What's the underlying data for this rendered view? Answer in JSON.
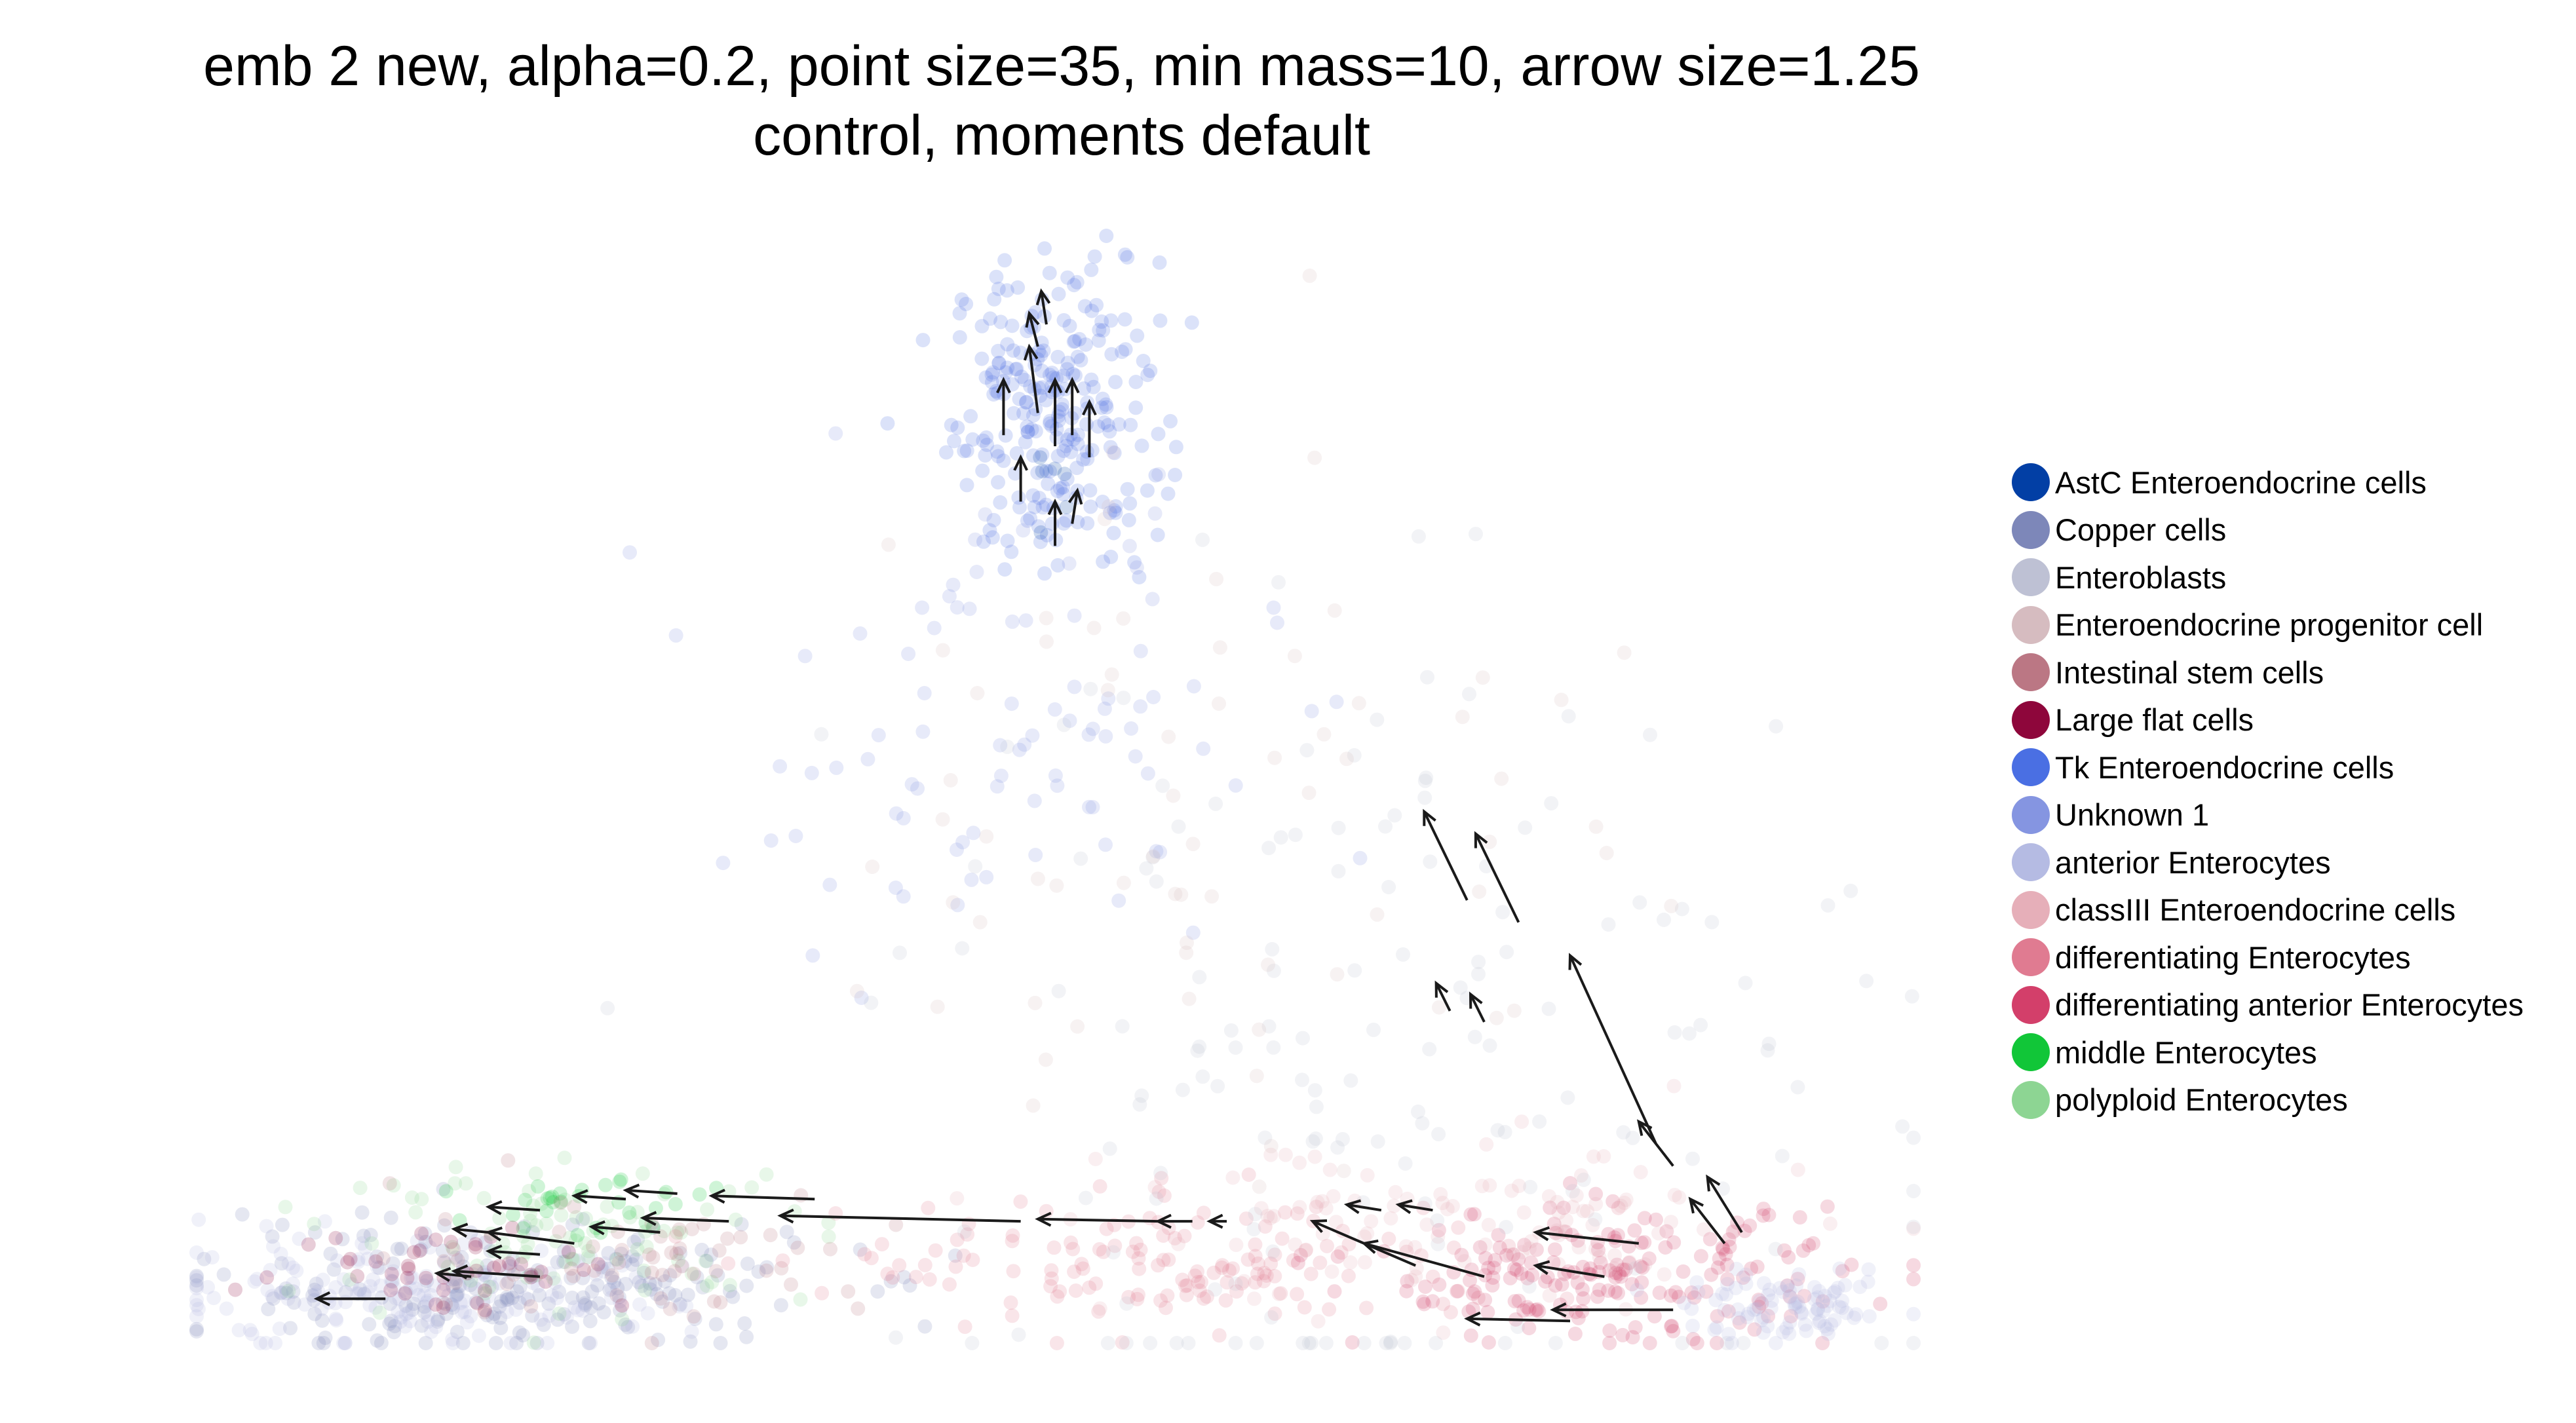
{
  "chart_data": {
    "type": "scatter",
    "title": "emb 2 new, alpha=0.2, point size=35, min mass=10, arrow size=1.25",
    "subtitle": "control, moments default",
    "xlabel": "",
    "ylabel": "",
    "axes_visible": false,
    "grid": false,
    "legend_placement": "right",
    "point_alpha": 0.2,
    "point_size": 35,
    "min_mass": 10,
    "arrow_size": 1.25,
    "categories": [
      {
        "name": "AstC Enteroendocrine cells",
        "color": "#023fa5"
      },
      {
        "name": "Copper cells",
        "color": "#7d87b9"
      },
      {
        "name": "Enteroblasts",
        "color": "#bec1d4"
      },
      {
        "name": "Enteroendocrine progenitor cell",
        "color": "#d6bcc0"
      },
      {
        "name": "Intestinal stem cells",
        "color": "#bb7784"
      },
      {
        "name": "Large flat cells",
        "color": "#8e063b"
      },
      {
        "name": "Tk Enteroendocrine cells",
        "color": "#4a6fe3"
      },
      {
        "name": "Unknown 1",
        "color": "#8595e1"
      },
      {
        "name": "anterior Enterocytes",
        "color": "#b5bbe3"
      },
      {
        "name": "classIII Enteroendocrine cells",
        "color": "#e6afb9"
      },
      {
        "name": "differentiating Enterocytes",
        "color": "#e07b91"
      },
      {
        "name": "differentiating anterior Enterocytes",
        "color": "#d33f6a"
      },
      {
        "name": "middle Enterocytes",
        "color": "#11c638"
      },
      {
        "name": "polyploid Enterocytes",
        "color": "#8dd593"
      }
    ],
    "clusters": [
      {
        "category": "Tk Enteroendocrine cells",
        "cx": 0.5,
        "cy": 0.84,
        "sx": 0.03,
        "sy": 0.07,
        "n": 260
      },
      {
        "category": "Unknown 1",
        "cx": 0.47,
        "cy": 0.55,
        "sx": 0.08,
        "sy": 0.1,
        "n": 90
      },
      {
        "category": "Copper cells",
        "cx": 0.18,
        "cy": 0.05,
        "sx": 0.09,
        "sy": 0.03,
        "n": 220
      },
      {
        "category": "anterior Enterocytes",
        "cx": 0.12,
        "cy": 0.04,
        "sx": 0.08,
        "sy": 0.025,
        "n": 160
      },
      {
        "category": "polyploid Enterocytes",
        "cx": 0.22,
        "cy": 0.1,
        "sx": 0.07,
        "sy": 0.03,
        "n": 90
      },
      {
        "category": "middle Enterocytes",
        "cx": 0.24,
        "cy": 0.12,
        "sx": 0.05,
        "sy": 0.02,
        "n": 30
      },
      {
        "category": "Large flat cells",
        "cx": 0.15,
        "cy": 0.07,
        "sx": 0.05,
        "sy": 0.02,
        "n": 45
      },
      {
        "category": "Intestinal stem cells",
        "cx": 0.26,
        "cy": 0.08,
        "sx": 0.07,
        "sy": 0.03,
        "n": 60
      },
      {
        "category": "differentiating Enterocytes",
        "cx": 0.58,
        "cy": 0.07,
        "sx": 0.1,
        "sy": 0.03,
        "n": 150
      },
      {
        "category": "differentiating anterior Enterocytes",
        "cx": 0.82,
        "cy": 0.06,
        "sx": 0.07,
        "sy": 0.03,
        "n": 200
      },
      {
        "category": "classIII Enteroendocrine cells",
        "cx": 0.74,
        "cy": 0.1,
        "sx": 0.1,
        "sy": 0.04,
        "n": 110
      },
      {
        "category": "Enteroblasts",
        "cx": 0.7,
        "cy": 0.25,
        "sx": 0.15,
        "sy": 0.2,
        "n": 170
      },
      {
        "category": "Enteroendocrine progenitor cell",
        "cx": 0.6,
        "cy": 0.5,
        "sx": 0.12,
        "sy": 0.18,
        "n": 70
      },
      {
        "category": "anterior Enterocytes",
        "cx": 0.93,
        "cy": 0.03,
        "sx": 0.03,
        "sy": 0.015,
        "n": 90
      },
      {
        "category": "AstC Enteroendocrine cells",
        "cx": 0.5,
        "cy": 0.78,
        "sx": 0.01,
        "sy": 0.02,
        "n": 6
      }
    ],
    "arrows": [
      {
        "x": 0.11,
        "y": 0.04,
        "dx": -0.04,
        "dy": 0
      },
      {
        "x": 0.2,
        "y": 0.06,
        "dx": -0.05,
        "dy": 0.005
      },
      {
        "x": 0.22,
        "y": 0.09,
        "dx": -0.05,
        "dy": 0.01
      },
      {
        "x": 0.27,
        "y": 0.1,
        "dx": -0.04,
        "dy": 0.005
      },
      {
        "x": 0.31,
        "y": 0.11,
        "dx": -0.05,
        "dy": 0.003
      },
      {
        "x": 0.36,
        "y": 0.13,
        "dx": -0.06,
        "dy": 0.003
      },
      {
        "x": 0.17,
        "y": 0.1,
        "dx": -0.02,
        "dy": 0.003
      },
      {
        "x": 0.2,
        "y": 0.12,
        "dx": -0.03,
        "dy": 0.003
      },
      {
        "x": 0.25,
        "y": 0.13,
        "dx": -0.03,
        "dy": 0.003
      },
      {
        "x": 0.28,
        "y": 0.135,
        "dx": -0.03,
        "dy": 0.003
      },
      {
        "x": 0.2,
        "y": 0.08,
        "dx": -0.03,
        "dy": 0.003
      },
      {
        "x": 0.16,
        "y": 0.06,
        "dx": -0.02,
        "dy": 0.003
      },
      {
        "x": 0.48,
        "y": 0.11,
        "dx": -0.14,
        "dy": 0.005
      },
      {
        "x": 0.56,
        "y": 0.11,
        "dx": -0.07,
        "dy": 0.002
      },
      {
        "x": 0.58,
        "y": 0.11,
        "dx": -0.02,
        "dy": 0
      },
      {
        "x": 0.6,
        "y": 0.11,
        "dx": -0.01,
        "dy": 0
      },
      {
        "x": 0.71,
        "y": 0.07,
        "dx": -0.06,
        "dy": 0.04
      },
      {
        "x": 0.75,
        "y": 0.06,
        "dx": -0.07,
        "dy": 0.03
      },
      {
        "x": 0.82,
        "y": 0.06,
        "dx": -0.04,
        "dy": 0.01
      },
      {
        "x": 0.8,
        "y": 0.02,
        "dx": -0.06,
        "dy": 0.002
      },
      {
        "x": 0.86,
        "y": 0.03,
        "dx": -0.07,
        "dy": 0
      },
      {
        "x": 0.69,
        "y": 0.12,
        "dx": -0.02,
        "dy": 0.005
      },
      {
        "x": 0.72,
        "y": 0.12,
        "dx": -0.02,
        "dy": 0.005
      },
      {
        "x": 0.84,
        "y": 0.09,
        "dx": -0.06,
        "dy": 0.01
      },
      {
        "x": 0.74,
        "y": 0.4,
        "dx": -0.025,
        "dy": 0.08
      },
      {
        "x": 0.77,
        "y": 0.38,
        "dx": -0.025,
        "dy": 0.08
      },
      {
        "x": 0.73,
        "y": 0.3,
        "dx": -0.008,
        "dy": 0.025
      },
      {
        "x": 0.75,
        "y": 0.29,
        "dx": -0.008,
        "dy": 0.025
      },
      {
        "x": 0.85,
        "y": 0.18,
        "dx": -0.05,
        "dy": 0.17
      },
      {
        "x": 0.9,
        "y": 0.1,
        "dx": -0.02,
        "dy": 0.05
      },
      {
        "x": 0.89,
        "y": 0.09,
        "dx": -0.02,
        "dy": 0.04
      },
      {
        "x": 0.86,
        "y": 0.16,
        "dx": -0.02,
        "dy": 0.04
      },
      {
        "x": 0.47,
        "y": 0.82,
        "dx": 0,
        "dy": 0.05
      },
      {
        "x": 0.49,
        "y": 0.84,
        "dx": -0.005,
        "dy": 0.06
      },
      {
        "x": 0.5,
        "y": 0.81,
        "dx": 0,
        "dy": 0.06
      },
      {
        "x": 0.51,
        "y": 0.82,
        "dx": 0,
        "dy": 0.05
      },
      {
        "x": 0.52,
        "y": 0.8,
        "dx": 0,
        "dy": 0.05
      },
      {
        "x": 0.48,
        "y": 0.76,
        "dx": 0,
        "dy": 0.04
      },
      {
        "x": 0.5,
        "y": 0.72,
        "dx": 0,
        "dy": 0.04
      },
      {
        "x": 0.51,
        "y": 0.74,
        "dx": 0.003,
        "dy": 0.03
      },
      {
        "x": 0.49,
        "y": 0.9,
        "dx": -0.005,
        "dy": 0.03
      },
      {
        "x": 0.495,
        "y": 0.92,
        "dx": -0.003,
        "dy": 0.03
      }
    ]
  }
}
